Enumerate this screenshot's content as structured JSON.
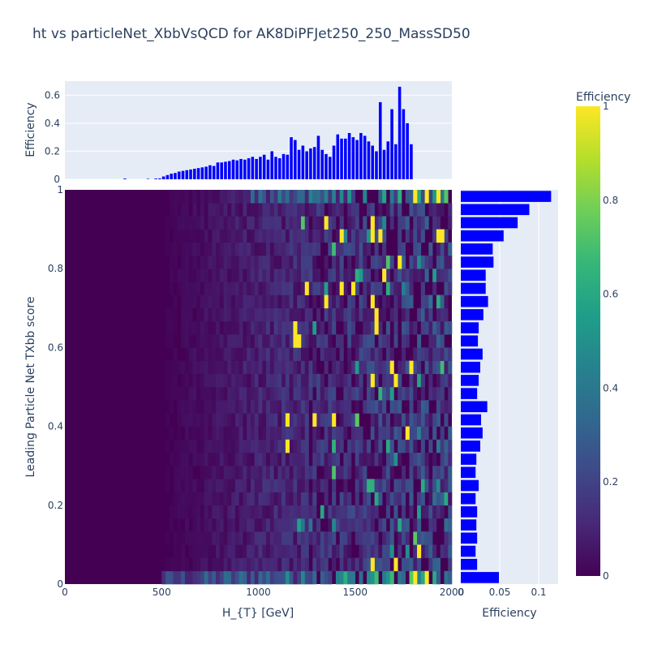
{
  "chart_data": [
    {
      "panel": "top",
      "type": "bar",
      "ylabel": "Efficiency",
      "xlim": [
        0,
        2000
      ],
      "ylim": [
        0,
        0.7
      ],
      "ytick_labels": [
        "0",
        "0.2",
        "0.4",
        "0.6"
      ],
      "bin_width": 20,
      "color": "#0000ff",
      "values": [
        0,
        0,
        0,
        0,
        0,
        0,
        0,
        0,
        0,
        0,
        0,
        0,
        0,
        0,
        0,
        0.005,
        0,
        0,
        0,
        0,
        0,
        0.003,
        0,
        0.005,
        0.006,
        0.02,
        0.03,
        0.04,
        0.045,
        0.055,
        0.06,
        0.065,
        0.07,
        0.075,
        0.08,
        0.085,
        0.09,
        0.1,
        0.095,
        0.12,
        0.12,
        0.125,
        0.13,
        0.14,
        0.135,
        0.145,
        0.14,
        0.15,
        0.16,
        0.145,
        0.16,
        0.175,
        0.14,
        0.2,
        0.16,
        0.15,
        0.18,
        0.175,
        0.3,
        0.28,
        0.21,
        0.24,
        0.2,
        0.22,
        0.23,
        0.31,
        0.21,
        0.18,
        0.16,
        0.24,
        0.32,
        0.29,
        0.29,
        0.33,
        0.3,
        0.28,
        0.33,
        0.31,
        0.27,
        0.24,
        0.2,
        0.55,
        0.21,
        0.27,
        0.5,
        0.25,
        0.66,
        0.5,
        0.4,
        0.25
      ]
    },
    {
      "panel": "main",
      "type": "heatmap",
      "xlabel": "H_{T} [GeV]",
      "ylabel": "Leading Particle Net TXbb score",
      "xlim": [
        0,
        2000
      ],
      "ylim": [
        0,
        1
      ],
      "xtick_labels": [
        "0",
        "500",
        "1000",
        "1500",
        "2000"
      ],
      "ytick_labels": [
        "0",
        "0.2",
        "0.4",
        "0.6",
        "0.8",
        "1"
      ],
      "colorscale": "Viridis",
      "nx": 100,
      "ny": 30,
      "bright_bins": [
        [
          79,
          1,
          1
        ],
        [
          76,
          1,
          1
        ],
        [
          80,
          1,
          1
        ],
        [
          75,
          0,
          0.9
        ],
        [
          84,
          9,
          0.8
        ],
        [
          78,
          9,
          0.6
        ],
        [
          70,
          19,
          1
        ],
        [
          71,
          20,
          1
        ],
        [
          73,
          9,
          1
        ],
        [
          74,
          16,
          1
        ],
        [
          77,
          5,
          1
        ],
        [
          72,
          24,
          1
        ],
        [
          75,
          23,
          1
        ],
        [
          83,
          17,
          0.5
        ],
        [
          74,
          27,
          1
        ],
        [
          79,
          28,
          1
        ],
        [
          81,
          13,
          0.6
        ],
        [
          74,
          30,
          0.7
        ],
        [
          76,
          6,
          0.7
        ],
        [
          75,
          14,
          1
        ],
        [
          80,
          16,
          0.8
        ],
        [
          71,
          25,
          1
        ],
        [
          69,
          25,
          0.8
        ],
        [
          69,
          24,
          0.8
        ],
        [
          92,
          1,
          1
        ],
        [
          80,
          26,
          1
        ],
        [
          81,
          27,
          1
        ],
        [
          84,
          27,
          1
        ],
        [
          96,
          10,
          1
        ],
        [
          96,
          11,
          1
        ],
        [
          105,
          11,
          1
        ],
        [
          98,
          13,
          1
        ],
        [
          97,
          14,
          1
        ],
        [
          110,
          16,
          1
        ],
        [
          92,
          3,
          0.5
        ],
        [
          121,
          2,
          0.6
        ],
        [
          112,
          18,
          1
        ],
        [
          117,
          20,
          1
        ],
        [
          115,
          22,
          0.6
        ],
        [
          103,
          28,
          1
        ],
        [
          85,
          21,
          0.8
        ]
      ],
      "hot_cells": [
        {
          "x": 1810,
          "y": 0.99,
          "v": 1
        },
        {
          "x": 1870,
          "y": 0.99,
          "v": 1
        },
        {
          "x": 1930,
          "y": 0.98,
          "v": 1
        },
        {
          "x": 1340,
          "y": 0.915,
          "v": 1
        },
        {
          "x": 1590,
          "y": 0.915,
          "v": 1
        },
        {
          "x": 1590,
          "y": 0.885,
          "v": 1
        },
        {
          "x": 1620,
          "y": 0.885,
          "v": 1
        },
        {
          "x": 1930,
          "y": 0.885,
          "v": 1
        },
        {
          "x": 1950,
          "y": 0.885,
          "v": 1
        },
        {
          "x": 1430,
          "y": 0.885,
          "v": 1
        },
        {
          "x": 1730,
          "y": 0.815,
          "v": 1
        },
        {
          "x": 1650,
          "y": 0.785,
          "v": 1
        },
        {
          "x": 1250,
          "y": 0.755,
          "v": 1
        },
        {
          "x": 1420,
          "y": 0.755,
          "v": 1
        },
        {
          "x": 1490,
          "y": 0.755,
          "v": 1
        },
        {
          "x": 1350,
          "y": 0.72,
          "v": 1
        },
        {
          "x": 1590,
          "y": 0.72,
          "v": 1
        },
        {
          "x": 1600,
          "y": 0.685,
          "v": 1
        },
        {
          "x": 1600,
          "y": 0.655,
          "v": 1
        },
        {
          "x": 1190,
          "y": 0.655,
          "v": 1
        },
        {
          "x": 1190,
          "y": 0.62,
          "v": 1
        },
        {
          "x": 1210,
          "y": 0.62,
          "v": 1
        },
        {
          "x": 1680,
          "y": 0.555,
          "v": 1
        },
        {
          "x": 1790,
          "y": 0.555,
          "v": 1
        },
        {
          "x": 1580,
          "y": 0.52,
          "v": 1
        },
        {
          "x": 1700,
          "y": 0.52,
          "v": 1
        },
        {
          "x": 1150,
          "y": 0.42,
          "v": 1
        },
        {
          "x": 1290,
          "y": 0.42,
          "v": 1
        },
        {
          "x": 1390,
          "y": 0.42,
          "v": 1
        },
        {
          "x": 1760,
          "y": 0.39,
          "v": 1
        },
        {
          "x": 1150,
          "y": 0.355,
          "v": 1
        },
        {
          "x": 1820,
          "y": 0.085,
          "v": 1
        },
        {
          "x": 1590,
          "y": 0.05,
          "v": 1
        },
        {
          "x": 1710,
          "y": 0.05,
          "v": 1
        },
        {
          "x": 1810,
          "y": 0.015,
          "v": 1
        },
        {
          "x": 1870,
          "y": 0.015,
          "v": 1
        }
      ]
    },
    {
      "panel": "right",
      "type": "bar",
      "orientation": "h",
      "xlabel": "Efficiency",
      "xlim": [
        0,
        0.125
      ],
      "xtick_labels": [
        "0",
        "0.05",
        "0.1"
      ],
      "ylim": [
        0,
        1
      ],
      "color": "#0000ff",
      "values": [
        0.049,
        0.021,
        0.019,
        0.021,
        0.02,
        0.021,
        0.019,
        0.023,
        0.019,
        0.02,
        0.025,
        0.028,
        0.026,
        0.034,
        0.021,
        0.023,
        0.025,
        0.028,
        0.022,
        0.023,
        0.029,
        0.035,
        0.032,
        0.032,
        0.042,
        0.041,
        0.055,
        0.073,
        0.088,
        0.116
      ]
    },
    {
      "panel": "colorbar",
      "title": "Efficiency",
      "range": [
        0,
        1
      ],
      "tick_labels": [
        "0",
        "0.2",
        "0.4",
        "0.6",
        "0.8",
        "1"
      ]
    }
  ],
  "title": "ht vs particleNet_XbbVsQCD for AK8DiPFJet250_250_MassSD50",
  "colors": {
    "bar": "#0000ff",
    "plot_bg": "#e5ecf6",
    "grid": "#ffffff",
    "text": "#2a3f5f"
  }
}
